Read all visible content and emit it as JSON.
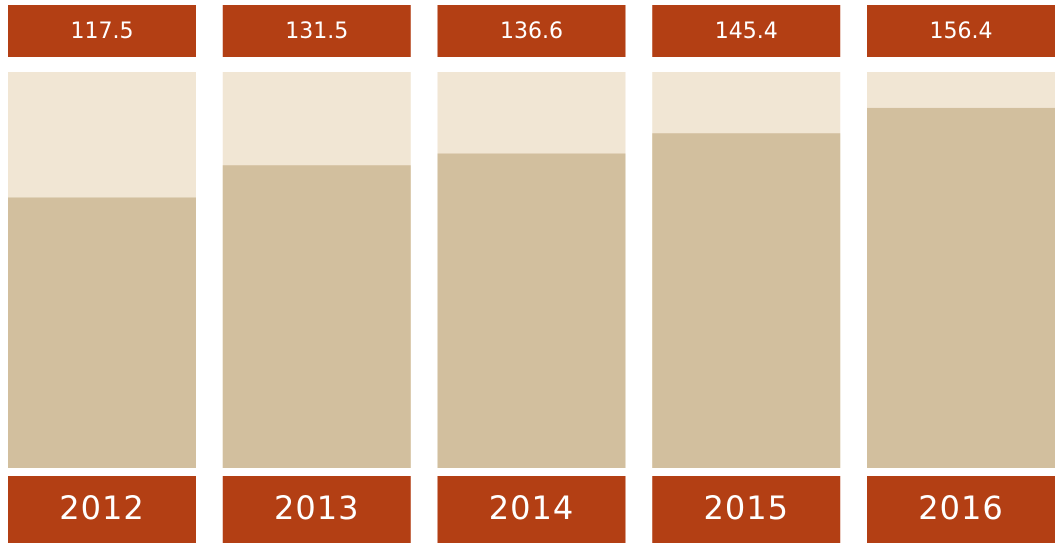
{
  "chart_data": {
    "type": "bar",
    "categories": [
      "2012",
      "2013",
      "2014",
      "2015",
      "2016"
    ],
    "values": [
      117.5,
      131.5,
      136.6,
      145.4,
      156.4
    ],
    "color": "#d2bf9e",
    "track_color": "#f1e6d4",
    "label_color": "#b33f14",
    "ylim": [
      0,
      172
    ]
  }
}
